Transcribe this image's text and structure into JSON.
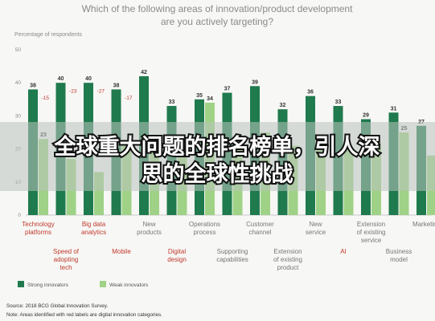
{
  "colors": {
    "strong": "#1f7a4d",
    "weak": "#9fd286",
    "highlight_label": "#c0392b",
    "normal_label": "#777777"
  },
  "banner": {
    "line1": "全球重大问题的排名榜单，引人深",
    "line2": "思的全球性挑战"
  },
  "chart_data": {
    "type": "bar",
    "title_lines": [
      "Which of the following areas of innovation/product development",
      "are you actively targeting?"
    ],
    "ylabel": "Percentage of respondents",
    "ylim": [
      0,
      50
    ],
    "yticks": [
      0,
      10,
      20,
      30,
      40,
      50
    ],
    "categories": [
      {
        "label": [
          "Technology",
          "platforms"
        ],
        "highlight": true,
        "row": 0
      },
      {
        "label": [
          "Speed of",
          "adopting",
          "tech"
        ],
        "highlight": true,
        "row": 1
      },
      {
        "label": [
          "Big data",
          "analytics"
        ],
        "highlight": true,
        "row": 0
      },
      {
        "label": [
          "Mobile"
        ],
        "highlight": true,
        "row": 1
      },
      {
        "label": [
          "New",
          "products"
        ],
        "highlight": false,
        "row": 0
      },
      {
        "label": [
          "Digital",
          "design"
        ],
        "highlight": true,
        "row": 1
      },
      {
        "label": [
          "Operations",
          "process"
        ],
        "highlight": false,
        "row": 0
      },
      {
        "label": [
          "Supporting",
          "capabilities"
        ],
        "highlight": false,
        "row": 1
      },
      {
        "label": [
          "Customer",
          "channel"
        ],
        "highlight": false,
        "row": 0
      },
      {
        "label": [
          "Extension",
          "of existing",
          "product"
        ],
        "highlight": false,
        "row": 1
      },
      {
        "label": [
          "New",
          "service"
        ],
        "highlight": false,
        "row": 0
      },
      {
        "label": [
          "AI"
        ],
        "highlight": true,
        "row": 1
      },
      {
        "label": [
          "Extension",
          "of existing",
          "service"
        ],
        "highlight": false,
        "row": 0
      },
      {
        "label": [
          "Business",
          "model"
        ],
        "highlight": false,
        "row": 1
      },
      {
        "label": [
          "Marketing"
        ],
        "highlight": false,
        "row": 0
      }
    ],
    "series": [
      {
        "name": "Strong innovators",
        "values": [
          38,
          40,
          40,
          38,
          42,
          33,
          35,
          37,
          39,
          32,
          36,
          33,
          29,
          31,
          27
        ]
      },
      {
        "name": "Weak innovators",
        "values": [
          23,
          17,
          13,
          21,
          20,
          23,
          34,
          22,
          25,
          21,
          24,
          20,
          22,
          25,
          18
        ]
      }
    ],
    "deltas": [
      "-15",
      "-23",
      "-27",
      "-17",
      "",
      "",
      "",
      "",
      "",
      "",
      "",
      "",
      "",
      "",
      ""
    ],
    "value_labels_strong": [
      "38",
      "40",
      "40",
      "38",
      "42",
      "33",
      "35",
      "37",
      "39",
      "32",
      "36",
      "33",
      "29",
      "31",
      "27"
    ],
    "value_labels_weak": [
      "23",
      "",
      "",
      "",
      "",
      "",
      "34",
      "",
      "",
      "",
      "",
      "",
      "",
      "25",
      ""
    ],
    "legend": [
      {
        "key": "strong",
        "label": "Strong innovators"
      },
      {
        "key": "weak",
        "label": "Weak innovators"
      }
    ],
    "source": "Source: 2018 BCG Global Innovation Survey.",
    "note": "Note: Areas identified with red labels are digital innovation categories.",
    "grid": false
  }
}
